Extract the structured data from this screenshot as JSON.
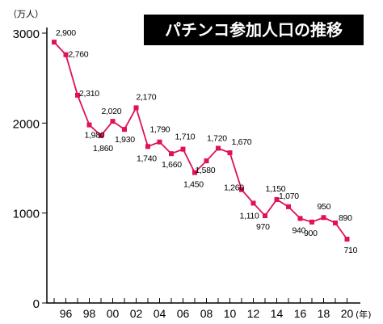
{
  "chart_data": {
    "type": "line",
    "title": "パチンコ参加人口の推移",
    "unit_label": "（万人）",
    "x_unit_label": "(年)",
    "line_color": "#e0105a",
    "marker_color": "#e0105a",
    "ylim": [
      0,
      3000
    ],
    "yticks": [
      0,
      1000,
      2000,
      3000
    ],
    "xtick_labels": [
      "96",
      "98",
      "00",
      "02",
      "04",
      "06",
      "08",
      "10",
      "12",
      "14",
      "16",
      "18",
      "20"
    ],
    "x": [
      1995,
      1996,
      1997,
      1998,
      1999,
      2000,
      2001,
      2002,
      2003,
      2004,
      2005,
      2006,
      2007,
      2008,
      2009,
      2010,
      2011,
      2012,
      2013,
      2014,
      2015,
      2016,
      2017,
      2018,
      2019,
      2020
    ],
    "values": [
      2900,
      2760,
      2310,
      1980,
      1860,
      2020,
      1930,
      2170,
      1740,
      1790,
      1660,
      1710,
      1450,
      1580,
      1720,
      1670,
      1260,
      1110,
      970,
      1150,
      1070,
      940,
      900,
      950,
      890,
      710
    ],
    "point_labels": [
      "2,900",
      "2,760",
      "2,310",
      "1,980",
      "1,860",
      "2,020",
      "1,930",
      "2,170",
      "1,740",
      "1,790",
      "1,660",
      "1,710",
      "1,450",
      "1,580",
      "1,720",
      "1,670",
      "1,260",
      "1,110",
      "970",
      "1,150",
      "1,070",
      "940",
      "900",
      "950",
      "890",
      "710"
    ]
  }
}
